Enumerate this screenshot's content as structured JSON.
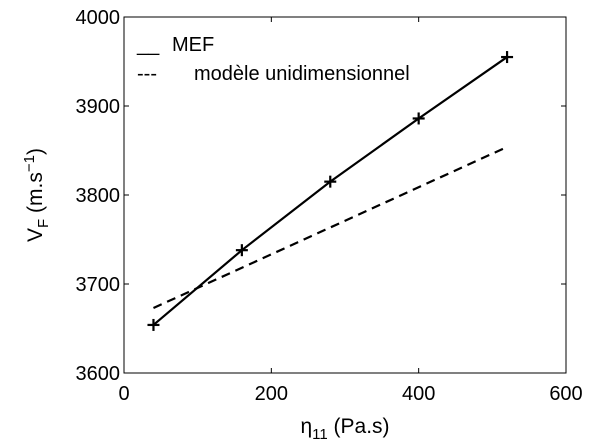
{
  "chart_data": {
    "type": "line",
    "xlabel": {
      "symbol": "η",
      "subscript": "11",
      "unit": " (Pa.s)"
    },
    "ylabel": {
      "symbol": "V",
      "subscript": "F",
      "unit_prefix": " (m.s",
      "unit_exponent": "−1",
      "unit_suffix": ")"
    },
    "xlim": [
      0,
      600
    ],
    "ylim": [
      3600,
      4000
    ],
    "xticks": [
      0,
      200,
      400,
      600
    ],
    "yticks": [
      3600,
      3700,
      3800,
      3900,
      4000
    ],
    "grid": false,
    "legend_position": "top-left",
    "series": [
      {
        "name": "MEF",
        "legend_prefix": "__",
        "line_style": "solid",
        "marker": "plus",
        "color": "#000000",
        "x": [
          40,
          160,
          280,
          400,
          520
        ],
        "y": [
          3654,
          3738,
          3815,
          3886,
          3955
        ]
      },
      {
        "name": "modèle unidimensionnel",
        "legend_prefix": "---",
        "line_style": "dashed",
        "marker": "none",
        "color": "#000000",
        "x": [
          40,
          520
        ],
        "y": [
          3673,
          3854
        ]
      }
    ]
  }
}
